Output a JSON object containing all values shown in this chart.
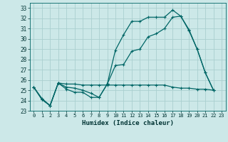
{
  "xlabel": "Humidex (Indice chaleur)",
  "bg_color": "#cce8e8",
  "grid_color": "#aacfcf",
  "line_color": "#006666",
  "xlim": [
    -0.5,
    23.5
  ],
  "ylim": [
    23,
    33.5
  ],
  "yticks": [
    23,
    24,
    25,
    26,
    27,
    28,
    29,
    30,
    31,
    32,
    33
  ],
  "xticks": [
    0,
    1,
    2,
    3,
    4,
    5,
    6,
    7,
    8,
    9,
    10,
    11,
    12,
    13,
    14,
    15,
    16,
    17,
    18,
    19,
    20,
    21,
    22,
    23
  ],
  "line1_x": [
    0,
    1,
    2,
    3,
    4,
    5,
    6,
    7,
    8,
    9,
    10,
    11,
    12,
    13,
    14,
    15,
    16,
    17,
    18,
    19,
    20,
    21,
    22
  ],
  "line1_y": [
    25.3,
    24.1,
    23.5,
    25.7,
    25.1,
    24.8,
    24.8,
    24.3,
    24.3,
    25.6,
    28.9,
    30.4,
    31.7,
    31.7,
    32.1,
    32.1,
    32.1,
    32.8,
    32.2,
    30.9,
    29.0,
    26.7,
    25.0
  ],
  "line2_x": [
    0,
    1,
    2,
    3,
    4,
    5,
    6,
    7,
    8,
    9,
    10,
    11,
    12,
    13,
    14,
    15,
    16,
    17,
    18,
    19,
    20,
    21,
    22
  ],
  "line2_y": [
    25.3,
    24.1,
    23.5,
    25.7,
    25.3,
    25.2,
    25.0,
    24.7,
    24.3,
    25.6,
    27.4,
    27.5,
    28.8,
    29.0,
    30.2,
    30.5,
    31.0,
    32.1,
    32.2,
    30.8,
    29.0,
    26.7,
    25.0
  ],
  "line3_x": [
    0,
    1,
    2,
    3,
    4,
    5,
    6,
    7,
    8,
    9,
    10,
    11,
    12,
    13,
    14,
    15,
    16,
    17,
    18,
    19,
    20,
    21,
    22
  ],
  "line3_y": [
    25.3,
    24.2,
    23.5,
    25.7,
    25.6,
    25.6,
    25.5,
    25.5,
    25.5,
    25.5,
    25.5,
    25.5,
    25.5,
    25.5,
    25.5,
    25.5,
    25.5,
    25.3,
    25.2,
    25.2,
    25.1,
    25.1,
    25.0
  ]
}
